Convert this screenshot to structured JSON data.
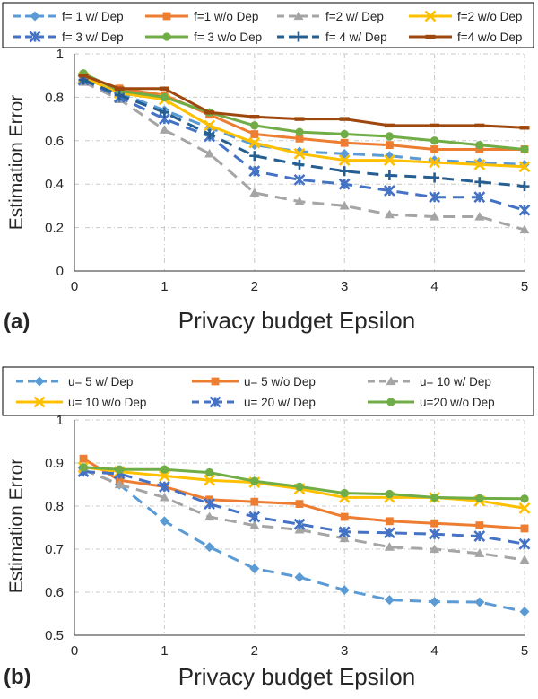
{
  "chart_data": [
    {
      "type": "line",
      "panel_label": "(a)",
      "xlabel": "Privacy budget Epsilon",
      "ylabel": "Estimation Error",
      "xlim": [
        0,
        5
      ],
      "ylim": [
        0,
        1
      ],
      "x_ticks": [
        "0",
        "1",
        "2",
        "3",
        "4",
        "5"
      ],
      "y_ticks": [
        "0",
        "0.2",
        "0.4",
        "0.6",
        "0.8",
        "1"
      ],
      "grid": true,
      "legend_position": "top",
      "x": [
        0.1,
        0.5,
        1,
        1.5,
        2,
        2.5,
        3,
        3.5,
        4,
        4.5,
        5
      ],
      "series": [
        {
          "name": "f= 1 w/ Dep",
          "color": "#5b9bd5",
          "dash": true,
          "marker": "diamond",
          "values": [
            0.88,
            0.82,
            0.74,
            0.66,
            0.58,
            0.55,
            0.54,
            0.53,
            0.51,
            0.5,
            0.49
          ]
        },
        {
          "name": "f=1 w/o Dep",
          "color": "#ed7d31",
          "dash": false,
          "marker": "square",
          "values": [
            0.9,
            0.84,
            0.81,
            0.72,
            0.63,
            0.61,
            0.59,
            0.58,
            0.56,
            0.56,
            0.56
          ]
        },
        {
          "name": "f=2 w/ Dep",
          "color": "#a5a5a5",
          "dash": true,
          "marker": "triangle",
          "values": [
            0.87,
            0.79,
            0.65,
            0.54,
            0.36,
            0.32,
            0.3,
            0.26,
            0.25,
            0.25,
            0.19
          ]
        },
        {
          "name": "f=2 w/o Dep",
          "color": "#ffc000",
          "dash": false,
          "marker": "xmark",
          "values": [
            0.89,
            0.82,
            0.79,
            0.67,
            0.59,
            0.54,
            0.51,
            0.51,
            0.5,
            0.49,
            0.48
          ]
        },
        {
          "name": "f= 3 w/ Dep",
          "color": "#4472c4",
          "dash": true,
          "marker": "star",
          "values": [
            0.88,
            0.8,
            0.7,
            0.62,
            0.46,
            0.42,
            0.4,
            0.37,
            0.34,
            0.34,
            0.28
          ]
        },
        {
          "name": "f= 3 w/o Dep",
          "color": "#70ad47",
          "dash": false,
          "marker": "circle",
          "values": [
            0.91,
            0.83,
            0.8,
            0.73,
            0.67,
            0.64,
            0.63,
            0.62,
            0.6,
            0.58,
            0.56
          ]
        },
        {
          "name": "f= 4 w/ Dep",
          "color": "#255e91",
          "dash": true,
          "marker": "plus",
          "values": [
            0.88,
            0.81,
            0.73,
            0.63,
            0.53,
            0.49,
            0.46,
            0.44,
            0.43,
            0.41,
            0.39
          ]
        },
        {
          "name": "f=4 w/o Dep",
          "color": "#9e480e",
          "dash": false,
          "marker": "dash",
          "values": [
            0.9,
            0.84,
            0.84,
            0.73,
            0.71,
            0.7,
            0.7,
            0.67,
            0.67,
            0.67,
            0.66
          ]
        }
      ]
    },
    {
      "type": "line",
      "panel_label": "(b)",
      "xlabel": "Privacy budget Epsilon",
      "ylabel": "Estimation Error",
      "xlim": [
        0,
        5
      ],
      "ylim": [
        0.5,
        1
      ],
      "x_ticks": [
        "0",
        "1",
        "2",
        "3",
        "4",
        "5"
      ],
      "y_ticks": [
        "0.5",
        "0.6",
        "0.7",
        "0.8",
        "0.9",
        "1"
      ],
      "grid": true,
      "legend_position": "top",
      "x": [
        0.1,
        0.5,
        1,
        1.5,
        2,
        2.5,
        3,
        3.5,
        4,
        4.5,
        5
      ],
      "series": [
        {
          "name": "u= 5 w/ Dep",
          "color": "#5b9bd5",
          "dash": true,
          "marker": "diamond",
          "values": [
            0.885,
            0.85,
            0.765,
            0.705,
            0.655,
            0.635,
            0.605,
            0.582,
            0.578,
            0.577,
            0.555
          ]
        },
        {
          "name": "u= 5 w/o Dep",
          "color": "#ed7d31",
          "dash": false,
          "marker": "square",
          "values": [
            0.91,
            0.86,
            0.845,
            0.815,
            0.81,
            0.805,
            0.775,
            0.765,
            0.76,
            0.755,
            0.748
          ]
        },
        {
          "name": "u= 10 w/ Dep",
          "color": "#a5a5a5",
          "dash": true,
          "marker": "triangle",
          "values": [
            0.885,
            0.85,
            0.82,
            0.775,
            0.755,
            0.745,
            0.725,
            0.705,
            0.7,
            0.69,
            0.675
          ]
        },
        {
          "name": "u= 10 w/o Dep",
          "color": "#ffc000",
          "dash": false,
          "marker": "xmark",
          "values": [
            0.89,
            0.88,
            0.87,
            0.86,
            0.855,
            0.84,
            0.82,
            0.82,
            0.82,
            0.812,
            0.795
          ]
        },
        {
          "name": "u= 20 w/ Dep",
          "color": "#4472c4",
          "dash": true,
          "marker": "star",
          "values": [
            0.88,
            0.875,
            0.845,
            0.805,
            0.775,
            0.758,
            0.74,
            0.738,
            0.735,
            0.73,
            0.712
          ]
        },
        {
          "name": "u=20  w/o Dep",
          "color": "#70ad47",
          "dash": false,
          "marker": "circle",
          "values": [
            0.89,
            0.885,
            0.885,
            0.878,
            0.858,
            0.845,
            0.83,
            0.828,
            0.82,
            0.818,
            0.817
          ]
        }
      ]
    }
  ]
}
